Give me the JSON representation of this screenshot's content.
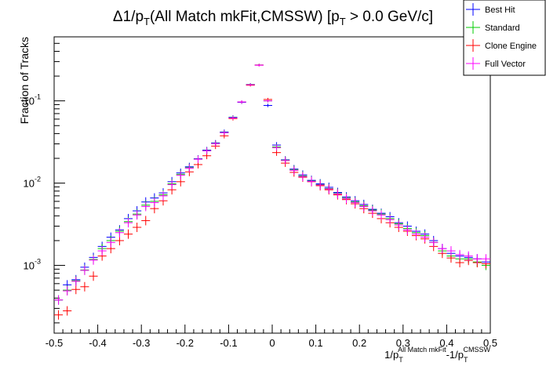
{
  "chart_data": {
    "type": "scatter",
    "title": "Δ1/p_T(All Match mkFit,CMSSW) [p_T > 0.0 GeV/c]",
    "title_parts": {
      "delta": "Δ1/p",
      "t_sub": "T",
      "middle": "(All Match mkFit,CMSSW) [p",
      "t_sub2": "T",
      "end": " > 0.0 GeV/c]"
    },
    "xlabel": "1/p_T^{All Match mkFit}-1/p_T^{CMSSW}",
    "xlabel_parts": {
      "p1": "1/p",
      "sub1": "T",
      "sup1": "All Match mkFit",
      "p2": "-1/p",
      "sub2": "T",
      "sup2": "CMSSW"
    },
    "ylabel": "Fraction of Tracks",
    "xlim": [
      -0.5,
      0.5
    ],
    "ylim": [
      0.00015,
      0.6
    ],
    "yscale": "log",
    "grid": false,
    "legend_position": "top-right",
    "x_ticks": [
      "-0.5",
      "-0.4",
      "-0.3",
      "-0.2",
      "-0.1",
      "0",
      "0.1",
      "0.2",
      "0.3",
      "0.4",
      "0.5"
    ],
    "y_ticks": [
      "10",
      "10",
      "10"
    ],
    "y_tick_exponents": [
      "-3",
      "-2",
      "-1"
    ],
    "x": [
      -0.49,
      -0.47,
      -0.45,
      -0.43,
      -0.41,
      -0.39,
      -0.37,
      -0.35,
      -0.33,
      -0.31,
      -0.29,
      -0.27,
      -0.25,
      -0.23,
      -0.21,
      -0.19,
      -0.17,
      -0.15,
      -0.13,
      -0.11,
      -0.09,
      -0.07,
      -0.05,
      -0.03,
      -0.01,
      0.01,
      0.03,
      0.05,
      0.07,
      0.09,
      0.11,
      0.13,
      0.15,
      0.17,
      0.19,
      0.21,
      0.23,
      0.25,
      0.27,
      0.29,
      0.31,
      0.33,
      0.35,
      0.37,
      0.39,
      0.41,
      0.43,
      0.45,
      0.47,
      0.49
    ],
    "series": [
      {
        "name": "Best Hit",
        "color": "#0000ff",
        "values": [
          0.00038,
          0.00058,
          0.00067,
          0.00095,
          0.00125,
          0.0017,
          0.0022,
          0.0027,
          0.0037,
          0.0046,
          0.0059,
          0.0066,
          0.0076,
          0.0104,
          0.0133,
          0.0158,
          0.0198,
          0.0252,
          0.0308,
          0.0418,
          0.0632,
          0.096,
          0.158,
          0.273,
          0.088,
          0.029,
          0.0192,
          0.0148,
          0.0126,
          0.0108,
          0.0098,
          0.0089,
          0.0077,
          0.0068,
          0.0061,
          0.0055,
          0.0048,
          0.0043,
          0.0039,
          0.0033,
          0.003,
          0.0026,
          0.0024,
          0.002,
          0.0016,
          0.0014,
          0.0013,
          0.00125,
          0.0012,
          0.0011
        ]
      },
      {
        "name": "Standard",
        "color": "#00cc00",
        "values": [
          0.00038,
          0.0005,
          0.00065,
          0.00088,
          0.00118,
          0.0016,
          0.002,
          0.0026,
          0.0034,
          0.0042,
          0.0054,
          0.006,
          0.0072,
          0.0098,
          0.0128,
          0.0154,
          0.0196,
          0.0248,
          0.0304,
          0.0412,
          0.0625,
          0.097,
          0.158,
          0.272,
          0.1,
          0.0275,
          0.019,
          0.0145,
          0.0122,
          0.0106,
          0.0096,
          0.0086,
          0.0075,
          0.0066,
          0.0059,
          0.0053,
          0.0047,
          0.0042,
          0.0037,
          0.0032,
          0.0028,
          0.0025,
          0.0023,
          0.0019,
          0.0015,
          0.0013,
          0.0012,
          0.0012,
          0.0011,
          0.001
        ]
      },
      {
        "name": "Clone Engine",
        "color": "#ff0000",
        "values": [
          0.00025,
          0.00028,
          0.00051,
          0.00055,
          0.00074,
          0.0013,
          0.0016,
          0.002,
          0.0024,
          0.0029,
          0.0035,
          0.0049,
          0.0061,
          0.0083,
          0.0104,
          0.0137,
          0.0168,
          0.0215,
          0.0282,
          0.0376,
          0.061,
          0.097,
          0.155,
          0.272,
          0.104,
          0.0235,
          0.0175,
          0.0135,
          0.0118,
          0.0104,
          0.0093,
          0.0083,
          0.0072,
          0.0063,
          0.0056,
          0.0049,
          0.0043,
          0.0037,
          0.0033,
          0.0029,
          0.0026,
          0.0023,
          0.0021,
          0.0017,
          0.0014,
          0.00123,
          0.00108,
          0.00115,
          0.00108,
          0.00105
        ]
      },
      {
        "name": "Full Vector",
        "color": "#ff00ff",
        "values": [
          0.00038,
          0.00049,
          0.00064,
          0.00087,
          0.00116,
          0.0015,
          0.0019,
          0.0025,
          0.0033,
          0.0041,
          0.0052,
          0.0058,
          0.007,
          0.0096,
          0.0125,
          0.0152,
          0.0195,
          0.0247,
          0.0302,
          0.041,
          0.062,
          0.097,
          0.157,
          0.271,
          0.1,
          0.027,
          0.0188,
          0.0143,
          0.012,
          0.0105,
          0.0095,
          0.0085,
          0.0074,
          0.0065,
          0.0058,
          0.0052,
          0.0046,
          0.0041,
          0.0036,
          0.0031,
          0.0027,
          0.0024,
          0.0022,
          0.0019,
          0.0016,
          0.0015,
          0.00135,
          0.0013,
          0.0012,
          0.0012
        ]
      }
    ]
  }
}
